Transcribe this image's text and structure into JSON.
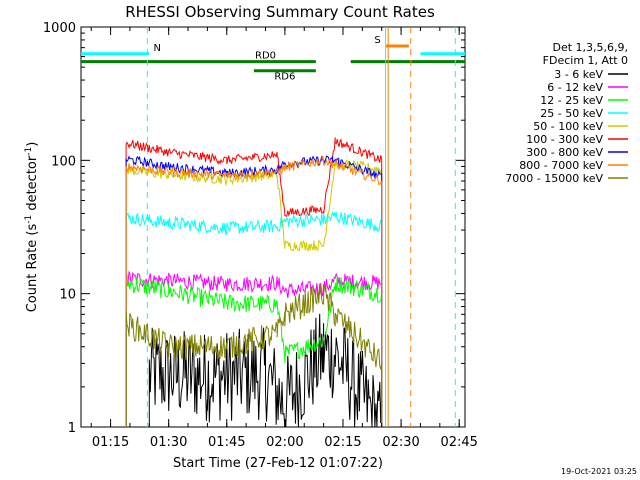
{
  "chart_data": {
    "type": "line",
    "title": "RHESSI Observing Summary Count Rates",
    "xlabel": "Start Time (27-Feb-12 01:07:22)",
    "ylabel_main": "Count Rate (s",
    "ylabel_sup1": "-1",
    "ylabel_mid": " detector",
    "ylabel_sup2": "-1",
    "ylabel_end": ")",
    "y_scale": "log",
    "ylim": [
      1,
      1000
    ],
    "xlim": [
      "01:07:22",
      "02:46:30"
    ],
    "x_ticks": [
      "01:15",
      "01:30",
      "01:45",
      "02:00",
      "02:15",
      "02:30",
      "02:45"
    ],
    "y_ticks": [
      "1",
      "10",
      "100",
      "1000"
    ],
    "legend_header": [
      "Det 1,3,5,6,9,",
      "FDecim 1, Att 0"
    ],
    "legend_placement": "right",
    "timestamp": "19-Oct-2021 03:25",
    "series": [
      {
        "name": "3 - 6 keV",
        "color": "#000000",
        "points": [
          [
            "01:25",
            2.5
          ],
          [
            "01:40",
            2.4
          ],
          [
            "01:55",
            2.5
          ],
          [
            "02:00",
            1.5
          ],
          [
            "02:10",
            3.6
          ],
          [
            "02:13",
            3.5
          ],
          [
            "02:25",
            1.0
          ]
        ]
      },
      {
        "name": "6 - 12 keV",
        "color": "#ff00ff",
        "points": [
          [
            "01:19",
            13
          ],
          [
            "01:30",
            12.5
          ],
          [
            "01:45",
            11.8
          ],
          [
            "01:58",
            12
          ],
          [
            "02:00",
            10.5
          ],
          [
            "02:10",
            11
          ],
          [
            "02:13",
            12.5
          ],
          [
            "02:25",
            12
          ]
        ]
      },
      {
        "name": "12 - 25 keV",
        "color": "#00ff00",
        "points": [
          [
            "01:19",
            12
          ],
          [
            "01:30",
            10.5
          ],
          [
            "01:45",
            8.5
          ],
          [
            "01:58",
            8.3
          ],
          [
            "02:00",
            3.5
          ],
          [
            "02:10",
            4.5
          ],
          [
            "02:13",
            12
          ],
          [
            "02:25",
            10
          ]
        ]
      },
      {
        "name": "25 - 50 keV",
        "color": "#00ffff",
        "points": [
          [
            "01:19",
            37
          ],
          [
            "01:30",
            34
          ],
          [
            "01:45",
            31
          ],
          [
            "01:58",
            32
          ],
          [
            "02:00",
            35
          ],
          [
            "02:10",
            36
          ],
          [
            "02:13",
            38
          ],
          [
            "02:25",
            32
          ]
        ]
      },
      {
        "name": "50 - 100 keV",
        "color": "#cccc00",
        "points": [
          [
            "01:19",
            85
          ],
          [
            "01:30",
            78
          ],
          [
            "01:45",
            72
          ],
          [
            "01:58",
            78
          ],
          [
            "02:00",
            23
          ],
          [
            "02:10",
            23
          ],
          [
            "02:13",
            95
          ],
          [
            "02:25",
            85
          ]
        ]
      },
      {
        "name": "100 - 300 keV",
        "color": "#ff0000",
        "points": [
          [
            "01:19",
            135
          ],
          [
            "01:30",
            115
          ],
          [
            "01:45",
            100
          ],
          [
            "01:58",
            110
          ],
          [
            "02:00",
            40
          ],
          [
            "02:10",
            43
          ],
          [
            "02:13",
            140
          ],
          [
            "02:25",
            100
          ]
        ]
      },
      {
        "name": "300 - 800 keV",
        "color": "#0000ff",
        "points": [
          [
            "01:19",
            102
          ],
          [
            "01:30",
            90
          ],
          [
            "01:45",
            80
          ],
          [
            "01:58",
            85
          ],
          [
            "02:00",
            95
          ],
          [
            "02:10",
            100
          ],
          [
            "02:13",
            100
          ],
          [
            "02:25",
            75
          ]
        ]
      },
      {
        "name": "800 - 7000 keV",
        "color": "#ff8000",
        "points": [
          [
            "01:19",
            90
          ],
          [
            "01:30",
            82
          ],
          [
            "01:45",
            77
          ],
          [
            "01:58",
            82
          ],
          [
            "02:00",
            88
          ],
          [
            "02:10",
            100
          ],
          [
            "02:13",
            93
          ],
          [
            "02:25",
            70
          ]
        ]
      },
      {
        "name": "7000 - 15000 keV",
        "color": "#808000",
        "points": [
          [
            "01:19",
            6
          ],
          [
            "01:30",
            4
          ],
          [
            "01:45",
            4
          ],
          [
            "01:58",
            5
          ],
          [
            "02:00",
            7
          ],
          [
            "02:10",
            10
          ],
          [
            "02:13",
            7
          ],
          [
            "02:25",
            3
          ]
        ]
      }
    ],
    "flags": [
      {
        "label": "N",
        "color": "#00ffff",
        "segments": [
          [
            "01:07:22",
            "01:25"
          ],
          [
            "02:35",
            "02:46:30"
          ]
        ],
        "level": 630
      },
      {
        "label": "RD0",
        "color": "#008000",
        "segments": [
          [
            "01:07:22",
            "02:08"
          ],
          [
            "02:17",
            "02:46:30"
          ]
        ],
        "level": 550
      },
      {
        "label": "RD6",
        "color": "#008000",
        "segments": [
          [
            "01:52",
            "02:08"
          ]
        ],
        "level": 470
      },
      {
        "label": "S",
        "color": "#ff8000",
        "segments": [
          [
            "02:26",
            "02:32"
          ]
        ],
        "level": 720
      }
    ],
    "vlines": [
      {
        "time": "01:24:30",
        "color": "#00ffff",
        "style": "dashed"
      },
      {
        "time": "02:26",
        "color": "#00ffff",
        "style": "solid"
      },
      {
        "time": "02:26:40",
        "color": "#ff8000",
        "style": "solid"
      },
      {
        "time": "02:32:30",
        "color": "#ff8000",
        "style": "dashed"
      },
      {
        "time": "02:44",
        "color": "#00ffff",
        "style": "dashed"
      }
    ]
  }
}
